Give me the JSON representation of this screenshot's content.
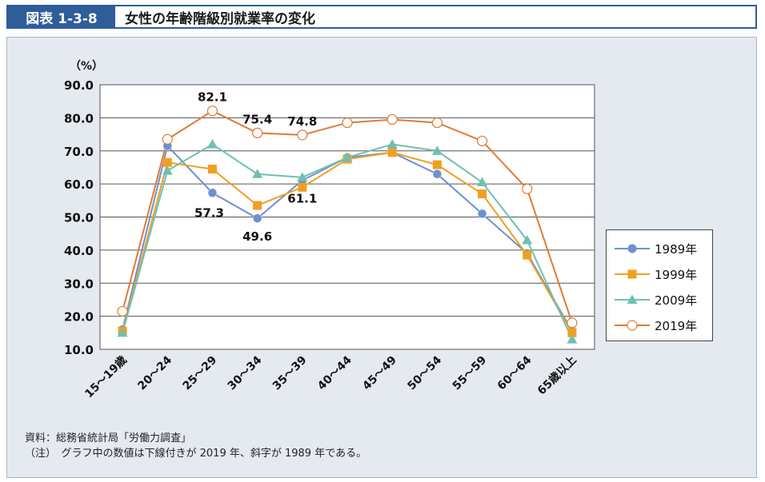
{
  "header": {
    "badge": "図表 1-3-8",
    "title": "女性の年齢階級別就業率の変化"
  },
  "notes": {
    "source": "資料：総務省統計局「労働力調査」",
    "note": "（注）　グラフ中の数値は下線付きが 2019 年、斜字が 1989 年である。"
  },
  "chart_data": {
    "type": "line",
    "ylabel": "（%）",
    "ylim": [
      10,
      90
    ],
    "yticks": [
      "10.0",
      "20.0",
      "30.0",
      "40.0",
      "50.0",
      "60.0",
      "70.0",
      "80.0",
      "90.0"
    ],
    "categories": [
      "15～19歳",
      "20～24",
      "25～29",
      "30～34",
      "35～39",
      "40～44",
      "45～49",
      "50～54",
      "55～59",
      "60～64",
      "65歳以上"
    ],
    "series": [
      {
        "name": "1989年",
        "color": "#6f8fd0",
        "marker": "circle",
        "values": [
          16.0,
          71.5,
          57.3,
          49.6,
          61.1,
          68.0,
          69.5,
          63.0,
          51.0,
          39.0,
          15.5
        ]
      },
      {
        "name": "1999年",
        "color": "#f0a020",
        "marker": "square",
        "values": [
          15.5,
          66.5,
          64.5,
          53.5,
          59.0,
          67.5,
          69.5,
          65.8,
          57.0,
          38.5,
          15.0
        ]
      },
      {
        "name": "2009年",
        "color": "#6fc0b0",
        "marker": "triangle",
        "values": [
          15.0,
          64.0,
          72.0,
          63.0,
          62.0,
          68.0,
          72.0,
          70.0,
          60.5,
          43.0,
          13.0
        ]
      },
      {
        "name": "2019年",
        "color": "#e07a35",
        "marker": "open-circle",
        "values": [
          21.5,
          73.5,
          82.1,
          75.4,
          74.8,
          78.5,
          79.5,
          78.5,
          73.0,
          58.5,
          18.0
        ]
      }
    ],
    "annotations": [
      {
        "text": "82.1",
        "series": 3,
        "index": 2,
        "pos": "above"
      },
      {
        "text": "75.4",
        "series": 3,
        "index": 3,
        "pos": "above"
      },
      {
        "text": "74.8",
        "series": 3,
        "index": 4,
        "pos": "above"
      },
      {
        "text": "57.3",
        "series": 0,
        "index": 2,
        "pos": "below-left"
      },
      {
        "text": "49.6",
        "series": 0,
        "index": 3,
        "pos": "below"
      },
      {
        "text": "61.1",
        "series": 0,
        "index": 4,
        "pos": "below"
      }
    ],
    "grid": true,
    "legend": "right"
  }
}
